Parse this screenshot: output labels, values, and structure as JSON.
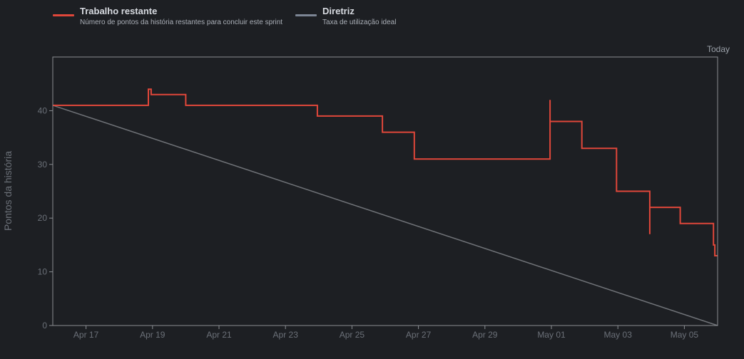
{
  "legend": [
    {
      "name": "Trabalho restante",
      "description": "Número de pontos da história restantes para concluir este sprint",
      "color": "#e0473a"
    },
    {
      "name": "Diretriz",
      "description": "Taxa de utilização ideal",
      "color": "#7c8594"
    }
  ],
  "ylabel": "Pontos da história",
  "today_label": "Today",
  "chart_data": {
    "type": "line",
    "xlabel": "",
    "ylabel": "Pontos da história",
    "ylim": [
      0,
      50
    ],
    "xlim": [
      "Apr 16",
      "May 06"
    ],
    "x_tick_labels": [
      "Apr 17",
      "Apr 19",
      "Apr 21",
      "Apr 23",
      "Apr 25",
      "Apr 27",
      "Apr 29",
      "May 01",
      "May 03",
      "May 05"
    ],
    "y_tick_labels": [
      "0",
      "10",
      "20",
      "30",
      "40"
    ],
    "x_ticks": [
      "Apr 17",
      "Apr 19",
      "Apr 21",
      "Apr 23",
      "Apr 25",
      "Apr 27",
      "Apr 29",
      "May 01",
      "May 03",
      "May 05"
    ],
    "y_ticks": [
      0,
      10,
      20,
      30,
      40
    ],
    "today_marker": "May 06",
    "series": [
      {
        "name": "Trabalho restante",
        "color": "#e0473a",
        "points": [
          [
            "Apr 16 00:00",
            41
          ],
          [
            "Apr 18 21:00",
            41
          ],
          [
            "Apr 18 21:00",
            44
          ],
          [
            "Apr 18 23:00",
            44
          ],
          [
            "Apr 18 23:00",
            43
          ],
          [
            "Apr 20 00:00",
            43
          ],
          [
            "Apr 20 00:00",
            41
          ],
          [
            "Apr 23 23:00",
            41
          ],
          [
            "Apr 23 23:00",
            39
          ],
          [
            "Apr 25 22:00",
            39
          ],
          [
            "Apr 25 22:00",
            36
          ],
          [
            "Apr 26 21:00",
            36
          ],
          [
            "Apr 26 21:00",
            31
          ],
          [
            "Apr 30 23:00",
            31
          ],
          [
            "Apr 30 23:00",
            42
          ],
          [
            "Apr 30 23:00",
            38
          ],
          [
            "May 01 22:00",
            38
          ],
          [
            "May 01 22:00",
            33
          ],
          [
            "May 02 23:00",
            33
          ],
          [
            "May 02 23:00",
            25
          ],
          [
            "May 03 23:00",
            25
          ],
          [
            "May 03 23:00",
            17
          ],
          [
            "May 03 23:00",
            22
          ],
          [
            "May 04 21:00",
            22
          ],
          [
            "May 04 21:00",
            19
          ],
          [
            "May 05 21:00",
            19
          ],
          [
            "May 05 21:00",
            15
          ],
          [
            "May 05 22:00",
            15
          ],
          [
            "May 05 22:00",
            13
          ],
          [
            "May 06 00:00",
            13
          ]
        ]
      },
      {
        "name": "Diretriz",
        "color": "#6f7277",
        "points": [
          [
            "Apr 16 00:00",
            41
          ],
          [
            "May 06 00:00",
            0
          ]
        ]
      }
    ],
    "grid": false,
    "legend_position": "top-left"
  }
}
